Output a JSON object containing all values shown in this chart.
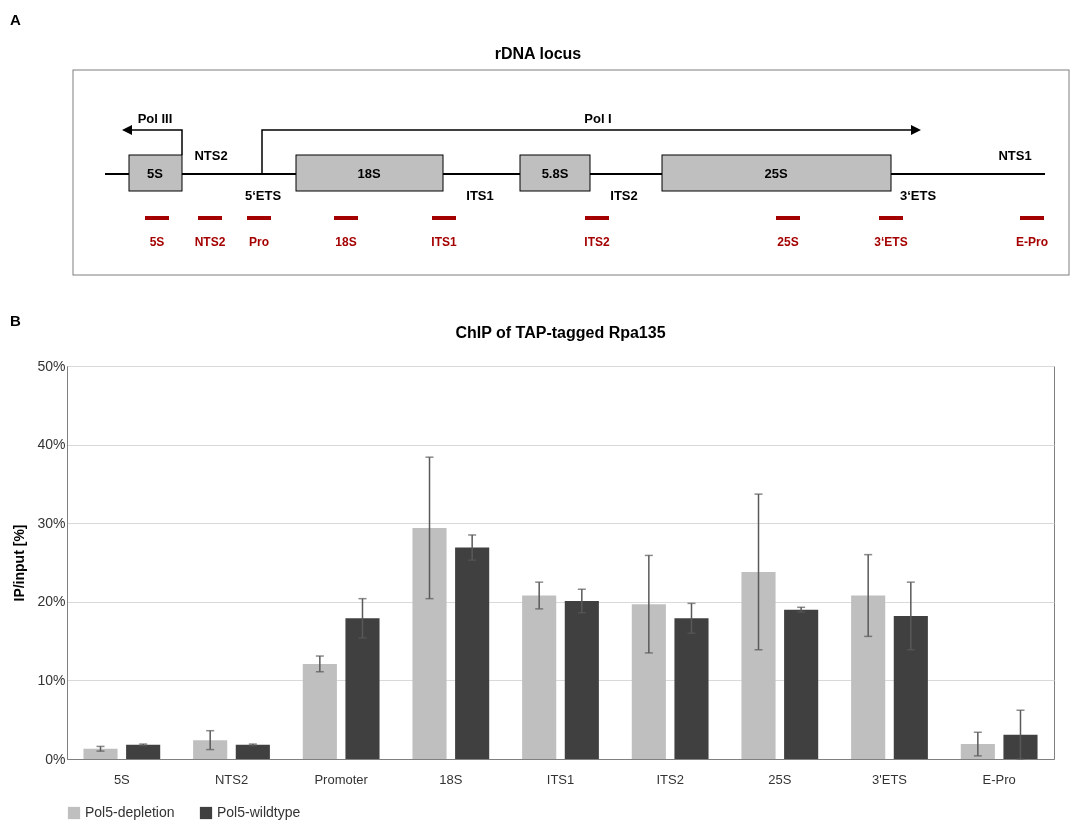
{
  "chart_data": [
    {
      "type": "other",
      "title": "rDNA locus",
      "annotations": [
        "A",
        "Pol III",
        "Pol I",
        "5S",
        "NTS2",
        "5‘ETS",
        "18S",
        "ITS1",
        "5.8S",
        "ITS2",
        "25S",
        "3‘ETS",
        "NTS1",
        "5S",
        "NTS2",
        "Pro",
        "18S",
        "ITS1",
        "ITS2",
        "25S",
        "3‘ETS",
        "E-Pro"
      ]
    },
    {
      "type": "bar",
      "title": "ChIP of TAP-tagged Rpa135",
      "ylabel": "IP/input [%]",
      "annotations": [
        "B"
      ],
      "categories": [
        "5S",
        "NTS2",
        "Promoter",
        "18S",
        "ITS1",
        "ITS2",
        "25S",
        "3'ETS",
        "E-Pro"
      ],
      "series": [
        {
          "name": "Pol5-depletion",
          "color": "#bfbfbf",
          "values": [
            1.3,
            2.4,
            12.1,
            29.4,
            20.8,
            19.7,
            23.8,
            20.8,
            1.9
          ],
          "errors": [
            0.3,
            1.2,
            1.0,
            9.0,
            1.7,
            6.2,
            9.9,
            5.2,
            1.5
          ]
        },
        {
          "name": "Pol5-wildtype",
          "color": "#404040",
          "values": [
            1.8,
            1.8,
            17.9,
            26.9,
            20.1,
            17.9,
            19.0,
            18.2,
            3.1
          ],
          "errors": [
            0.1,
            0.1,
            2.5,
            1.6,
            1.5,
            1.9,
            0.3,
            4.3,
            3.1
          ]
        }
      ],
      "ylim": [
        0,
        50
      ],
      "yticks": [
        {
          "value": 0,
          "label": "0%"
        },
        {
          "value": 10,
          "label": "10%"
        },
        {
          "value": 20,
          "label": "20%"
        },
        {
          "value": 30,
          "label": "30%"
        },
        {
          "value": 40,
          "label": "40%"
        },
        {
          "value": 50,
          "label": "50%"
        }
      ],
      "grid": "y",
      "legend": "bottom"
    }
  ]
}
